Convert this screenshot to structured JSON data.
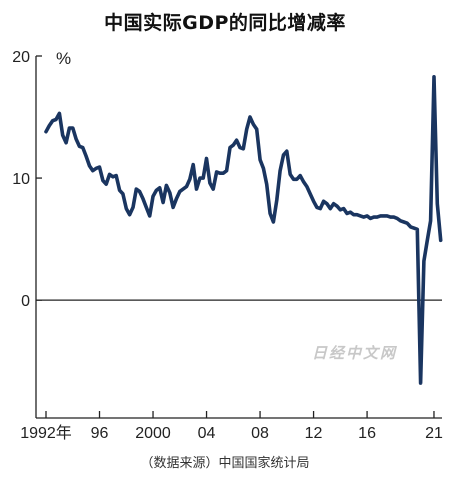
{
  "chart_data": {
    "type": "line",
    "title": "中国实际GDP的同比增减率",
    "ylabel": "%",
    "ylim": [
      -9,
      20
    ],
    "yticks": [
      0,
      10,
      20
    ],
    "xticks": [
      {
        "value": 1992,
        "label": "1992年"
      },
      {
        "value": 1996,
        "label": "96"
      },
      {
        "value": 2000,
        "label": "2000"
      },
      {
        "value": 2004,
        "label": "04"
      },
      {
        "value": 2008,
        "label": "08"
      },
      {
        "value": 2012,
        "label": "12"
      },
      {
        "value": 2016,
        "label": "16"
      },
      {
        "value": 2021,
        "label": "21"
      }
    ],
    "xlim": [
      1992,
      2021.6
    ],
    "zero_line": true,
    "line_color": "#1a3560",
    "series": [
      {
        "name": "",
        "x": [
          1992,
          1992.25,
          1992.5,
          1992.75,
          1993,
          1993.25,
          1993.5,
          1993.75,
          1994,
          1994.25,
          1994.5,
          1994.75,
          1995,
          1995.25,
          1995.5,
          1995.75,
          1996,
          1996.25,
          1996.5,
          1996.75,
          1997,
          1997.25,
          1997.5,
          1997.75,
          1998,
          1998.25,
          1998.5,
          1998.75,
          1999,
          1999.25,
          1999.5,
          1999.75,
          2000,
          2000.25,
          2000.5,
          2000.75,
          2001,
          2001.25,
          2001.5,
          2001.75,
          2002,
          2002.25,
          2002.5,
          2002.75,
          2003,
          2003.25,
          2003.5,
          2003.75,
          2004,
          2004.25,
          2004.5,
          2004.75,
          2005,
          2005.25,
          2005.5,
          2005.75,
          2006,
          2006.25,
          2006.5,
          2006.75,
          2007,
          2007.25,
          2007.5,
          2007.75,
          2008,
          2008.25,
          2008.5,
          2008.75,
          2009,
          2009.25,
          2009.5,
          2009.75,
          2010,
          2010.25,
          2010.5,
          2010.75,
          2011,
          2011.25,
          2011.5,
          2011.75,
          2012,
          2012.25,
          2012.5,
          2012.75,
          2013,
          2013.25,
          2013.5,
          2013.75,
          2014,
          2014.25,
          2014.5,
          2014.75,
          2015,
          2015.25,
          2015.5,
          2015.75,
          2016,
          2016.25,
          2016.5,
          2016.75,
          2017,
          2017.25,
          2017.5,
          2017.75,
          2018,
          2018.25,
          2018.5,
          2018.75,
          2019,
          2019.25,
          2019.5,
          2019.75,
          2020,
          2020.25,
          2020.5,
          2020.75,
          2021,
          2021.25,
          2021.5
        ],
        "values": [
          13.8,
          14.3,
          14.7,
          14.8,
          15.3,
          13.5,
          12.9,
          14.1,
          14.1,
          13.2,
          12.6,
          12.5,
          11.8,
          11.0,
          10.6,
          10.8,
          10.9,
          9.8,
          9.5,
          10.3,
          10.1,
          10.2,
          9.0,
          8.7,
          7.5,
          7.0,
          7.6,
          9.1,
          8.9,
          8.3,
          7.6,
          6.9,
          8.5,
          9.0,
          9.2,
          8.0,
          9.4,
          8.8,
          7.6,
          8.3,
          8.9,
          9.1,
          9.3,
          9.9,
          11.1,
          9.1,
          10.0,
          10.0,
          11.6,
          9.6,
          9.1,
          10.5,
          10.4,
          10.4,
          10.6,
          12.5,
          12.7,
          13.1,
          12.5,
          12.4,
          14.0,
          15.0,
          14.4,
          14.0,
          11.5,
          10.8,
          9.5,
          7.1,
          6.4,
          8.2,
          10.6,
          11.9,
          12.2,
          10.3,
          9.9,
          9.9,
          10.2,
          9.7,
          9.3,
          8.7,
          8.1,
          7.6,
          7.5,
          8.1,
          7.9,
          7.5,
          7.9,
          7.7,
          7.4,
          7.5,
          7.1,
          7.2,
          7.0,
          7.0,
          6.9,
          6.8,
          6.9,
          6.7,
          6.8,
          6.8,
          6.9,
          6.9,
          6.9,
          6.8,
          6.8,
          6.7,
          6.5,
          6.4,
          6.3,
          6.0,
          5.9,
          5.8,
          -6.8,
          3.2,
          4.9,
          6.5,
          18.3,
          7.9,
          4.9
        ]
      }
    ]
  },
  "source": "（数据来源）中国国家统计局",
  "watermark": "日经中文网"
}
